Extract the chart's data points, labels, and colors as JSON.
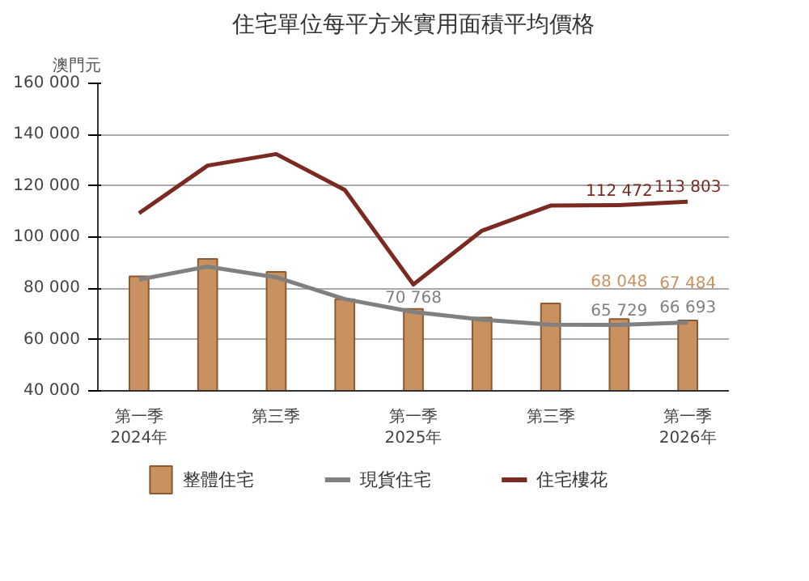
{
  "chart_data": {
    "type": "bar",
    "title": "住宅單位每平方米實用面積平均價格",
    "ylabel": "澳門元",
    "categories": [
      "第一季\n2024年",
      null,
      "第三季",
      null,
      "第一季\n2025年",
      null,
      "第三季",
      null,
      "第一季\n2026年"
    ],
    "ylim": [
      40000,
      160000
    ],
    "yticks": [
      {
        "value": 40000,
        "label": "40 000"
      },
      {
        "value": 60000,
        "label": "60 000"
      },
      {
        "value": 80000,
        "label": "80 000"
      },
      {
        "value": 100000,
        "label": "100 000"
      },
      {
        "value": 120000,
        "label": "120 000"
      },
      {
        "value": 140000,
        "label": "140 000"
      },
      {
        "value": 160000,
        "label": "160 000"
      }
    ],
    "grid": "y",
    "legend": "bottom",
    "series": [
      {
        "name": "整體住宅",
        "color": "#c8915f",
        "values": [
          84700,
          91500,
          86400,
          75800,
          72000,
          68600,
          74100,
          68048,
          67484
        ],
        "value_labels": [
          null,
          null,
          null,
          null,
          null,
          null,
          null,
          "68 048",
          "67 484"
        ]
      },
      {
        "name": "現貨住宅",
        "type": "line",
        "color": "#808080",
        "values": [
          83400,
          88500,
          84300,
          75800,
          70768,
          67800,
          65800,
          65729,
          66693
        ],
        "value_labels": [
          null,
          null,
          null,
          null,
          "70 768",
          null,
          null,
          "65 729",
          "66 693"
        ]
      },
      {
        "name": "住宅樓花",
        "type": "line",
        "color": "#7b2a22",
        "values": [
          109300,
          127900,
          132400,
          118400,
          81500,
          102500,
          112300,
          112472,
          113803
        ],
        "value_labels": [
          null,
          null,
          null,
          null,
          null,
          null,
          null,
          "112 472",
          "113 803"
        ]
      }
    ]
  }
}
